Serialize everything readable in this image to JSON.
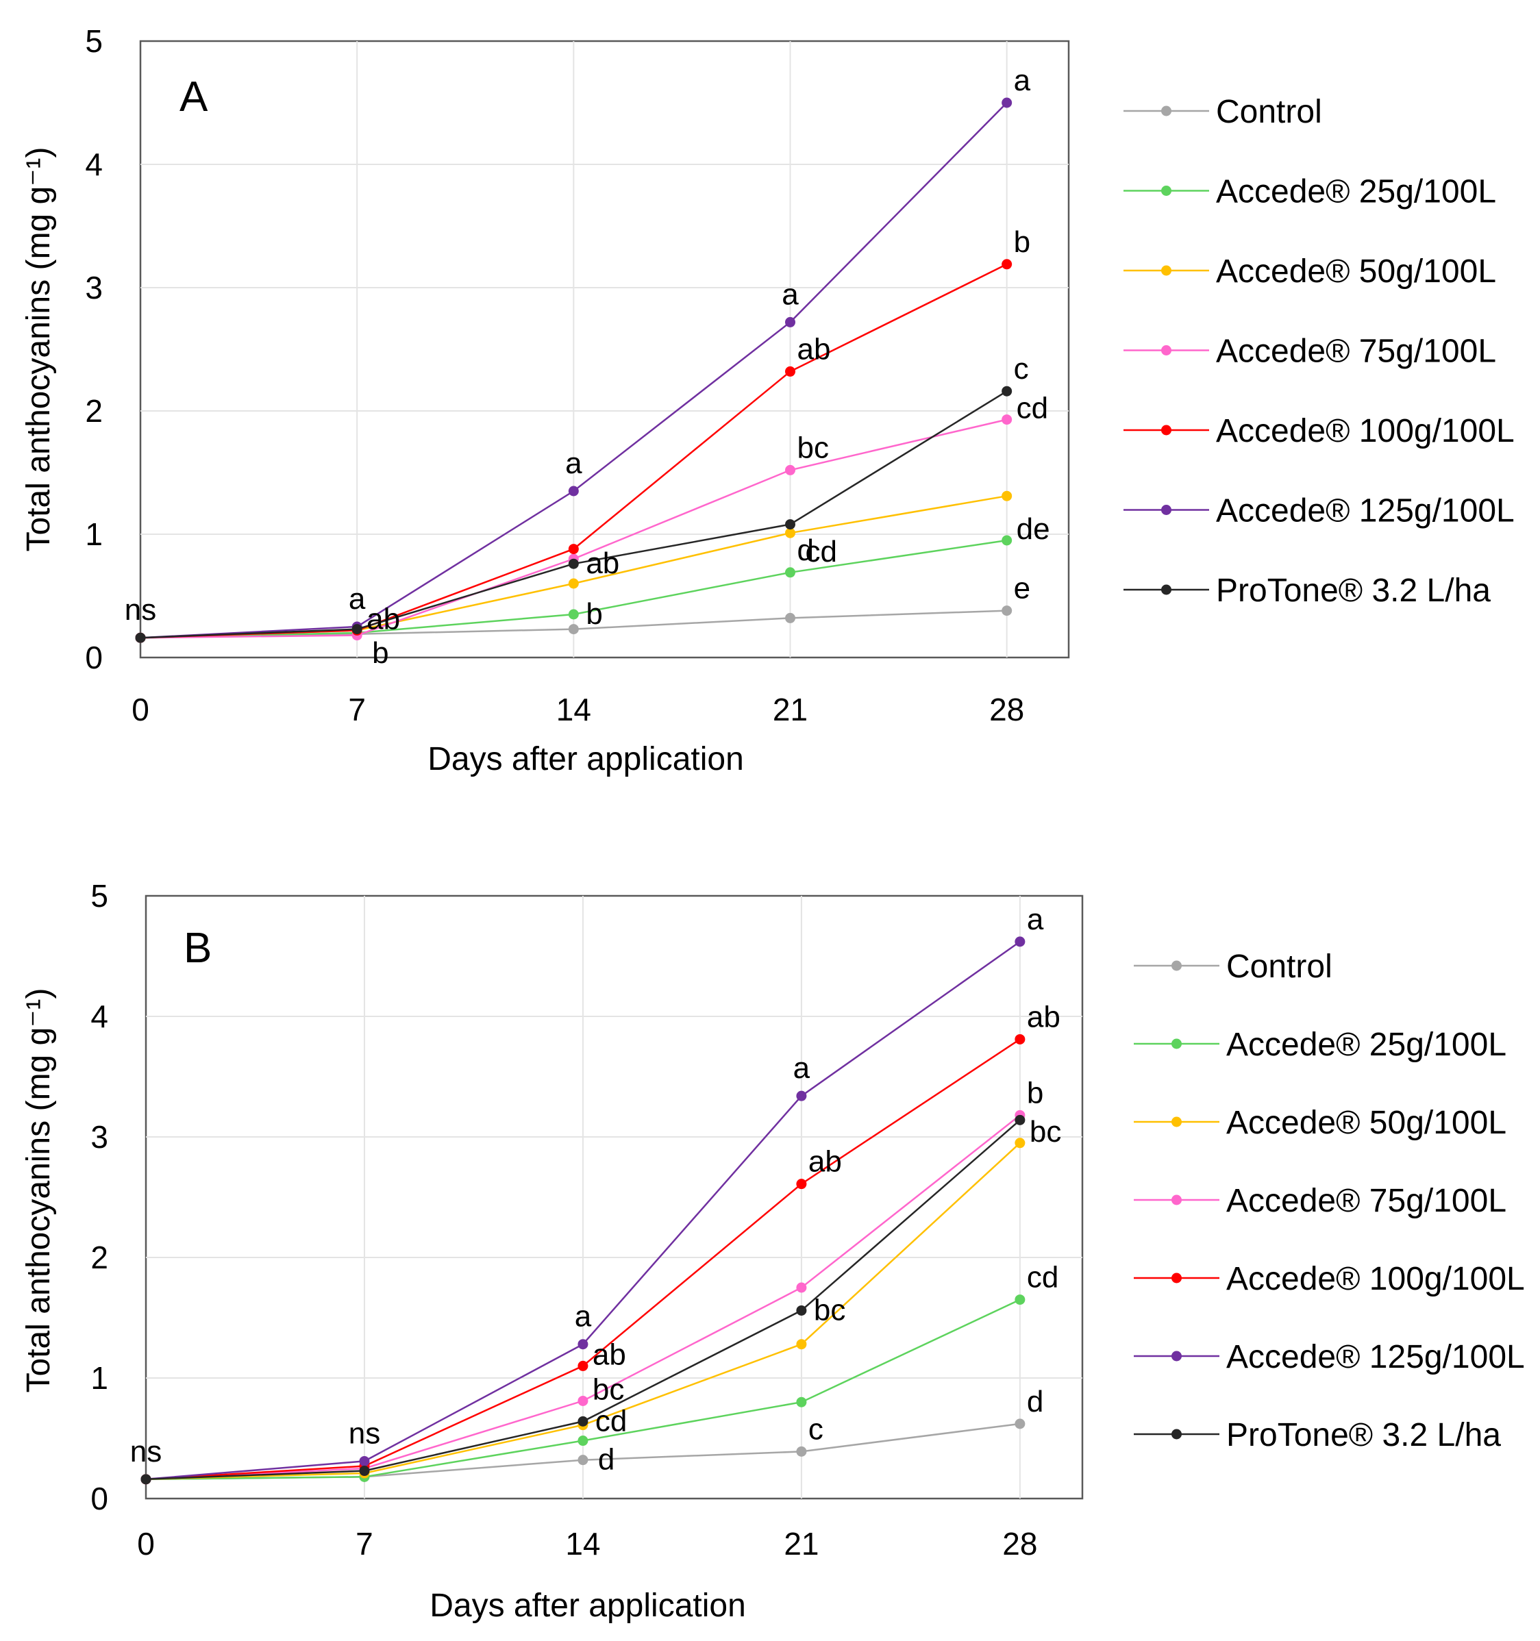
{
  "chart_data": [
    {
      "type": "line",
      "panel_label": "A",
      "xlabel": "Days after application",
      "ylabel": "Total anthocyanins (mg g⁻¹)",
      "x": [
        0,
        7,
        14,
        21,
        28
      ],
      "x_ticks": [
        "0",
        "7",
        "14",
        "21",
        "28"
      ],
      "xlim": [
        0,
        30
      ],
      "ylim": [
        0,
        5
      ],
      "y_ticks": [
        "0",
        "1",
        "2",
        "3",
        "4",
        "5"
      ],
      "grid": true,
      "legend_position": "right",
      "series": [
        {
          "name": "Control",
          "color": "#a6a6a6",
          "values": [
            0.16,
            0.19,
            0.23,
            0.32,
            0.38
          ]
        },
        {
          "name": "Accede® 25g/100L",
          "color": "#5dd35d",
          "values": [
            0.16,
            0.2,
            0.35,
            0.69,
            0.95
          ]
        },
        {
          "name": "Accede® 50g/100L",
          "color": "#ffc000",
          "values": [
            0.16,
            0.22,
            0.6,
            1.01,
            1.31
          ]
        },
        {
          "name": "Accede® 75g/100L",
          "color": "#ff66cc",
          "values": [
            0.16,
            0.18,
            0.8,
            1.52,
            1.93
          ]
        },
        {
          "name": "Accede® 100g/100L",
          "color": "#ff0000",
          "values": [
            0.16,
            0.22,
            0.88,
            2.32,
            3.19
          ]
        },
        {
          "name": "Accede® 125g/100L",
          "color": "#7030a0",
          "values": [
            0.16,
            0.25,
            1.35,
            2.72,
            4.5
          ]
        },
        {
          "name": "ProTone® 3.2 L/ha",
          "color": "#262626",
          "values": [
            0.16,
            0.23,
            0.76,
            1.08,
            2.16
          ]
        }
      ],
      "annotations": [
        {
          "x": 0,
          "y": 0.16,
          "text": "ns",
          "pos": "above"
        },
        {
          "x": 7,
          "y": 0.25,
          "text": "a",
          "pos": "above"
        },
        {
          "x": 7,
          "y": 0.22,
          "text": "ab",
          "pos": "right-up"
        },
        {
          "x": 7,
          "y": 0.19,
          "text": "b",
          "pos": "below-right"
        },
        {
          "x": 14,
          "y": 1.35,
          "text": "a",
          "pos": "above"
        },
        {
          "x": 14,
          "y": 0.76,
          "text": "ab",
          "pos": "right"
        },
        {
          "x": 14,
          "y": 0.35,
          "text": "b",
          "pos": "right"
        },
        {
          "x": 21,
          "y": 2.72,
          "text": "a",
          "pos": "above"
        },
        {
          "x": 21,
          "y": 2.32,
          "text": "ab",
          "pos": "above-right"
        },
        {
          "x": 21,
          "y": 1.52,
          "text": "bc",
          "pos": "above-right"
        },
        {
          "x": 21,
          "y": 1.01,
          "text": "cd",
          "pos": "below-right"
        },
        {
          "x": 21,
          "y": 0.69,
          "text": "d",
          "pos": "above-right"
        },
        {
          "x": 28,
          "y": 4.5,
          "text": "a",
          "pos": "above-right"
        },
        {
          "x": 28,
          "y": 3.19,
          "text": "b",
          "pos": "above-right"
        },
        {
          "x": 28,
          "y": 2.16,
          "text": "c",
          "pos": "above-right"
        },
        {
          "x": 28,
          "y": 1.93,
          "text": "cd",
          "pos": "right-up"
        },
        {
          "x": 28,
          "y": 0.95,
          "text": "de",
          "pos": "right-up"
        },
        {
          "x": 28,
          "y": 0.38,
          "text": "e",
          "pos": "above-right"
        }
      ]
    },
    {
      "type": "line",
      "panel_label": "B",
      "xlabel": "Days after application",
      "ylabel": "Total anthocyanins (mg g⁻¹)",
      "x": [
        0,
        7,
        14,
        21,
        28
      ],
      "x_ticks": [
        "0",
        "7",
        "14",
        "21",
        "28"
      ],
      "xlim": [
        0,
        30
      ],
      "ylim": [
        0,
        5
      ],
      "y_ticks": [
        "0",
        "1",
        "2",
        "3",
        "4",
        "5"
      ],
      "grid": true,
      "legend_position": "right",
      "series": [
        {
          "name": "Control",
          "color": "#a6a6a6",
          "values": [
            0.16,
            0.18,
            0.32,
            0.39,
            0.62
          ]
        },
        {
          "name": "Accede® 25g/100L",
          "color": "#5dd35d",
          "values": [
            0.16,
            0.18,
            0.48,
            0.8,
            1.65
          ]
        },
        {
          "name": "Accede® 50g/100L",
          "color": "#ffc000",
          "values": [
            0.16,
            0.21,
            0.61,
            1.28,
            2.95
          ]
        },
        {
          "name": "Accede® 75g/100L",
          "color": "#ff66cc",
          "values": [
            0.16,
            0.25,
            0.81,
            1.75,
            3.18
          ]
        },
        {
          "name": "Accede® 100g/100L",
          "color": "#ff0000",
          "values": [
            0.16,
            0.27,
            1.1,
            2.61,
            3.81
          ]
        },
        {
          "name": "Accede® 125g/100L",
          "color": "#7030a0",
          "values": [
            0.16,
            0.31,
            1.28,
            3.34,
            4.62
          ]
        },
        {
          "name": "ProTone® 3.2 L/ha",
          "color": "#262626",
          "values": [
            0.16,
            0.23,
            0.64,
            1.56,
            3.14
          ]
        }
      ],
      "annotations": [
        {
          "x": 0,
          "y": 0.16,
          "text": "ns",
          "pos": "above"
        },
        {
          "x": 7,
          "y": 0.31,
          "text": "ns",
          "pos": "above"
        },
        {
          "x": 14,
          "y": 1.28,
          "text": "a",
          "pos": "above"
        },
        {
          "x": 14,
          "y": 1.1,
          "text": "ab",
          "pos": "right-up"
        },
        {
          "x": 14,
          "y": 0.81,
          "text": "bc",
          "pos": "right-up"
        },
        {
          "x": 14,
          "y": 0.64,
          "text": "cd",
          "pos": "right"
        },
        {
          "x": 14,
          "y": 0.48,
          "text": "d",
          "pos": "below-right"
        },
        {
          "x": 21,
          "y": 3.34,
          "text": "a",
          "pos": "above"
        },
        {
          "x": 21,
          "y": 2.61,
          "text": "ab",
          "pos": "above-right"
        },
        {
          "x": 21,
          "y": 1.56,
          "text": "bc",
          "pos": "right"
        },
        {
          "x": 21,
          "y": 0.39,
          "text": "c",
          "pos": "above-right"
        },
        {
          "x": 28,
          "y": 4.62,
          "text": "a",
          "pos": "above-right"
        },
        {
          "x": 28,
          "y": 3.81,
          "text": "ab",
          "pos": "above-right"
        },
        {
          "x": 28,
          "y": 3.18,
          "text": "b",
          "pos": "above-right"
        },
        {
          "x": 28,
          "y": 2.95,
          "text": "bc",
          "pos": "right-up"
        },
        {
          "x": 28,
          "y": 1.65,
          "text": "cd",
          "pos": "above-right"
        },
        {
          "x": 28,
          "y": 0.62,
          "text": "d",
          "pos": "above-right"
        }
      ]
    }
  ]
}
